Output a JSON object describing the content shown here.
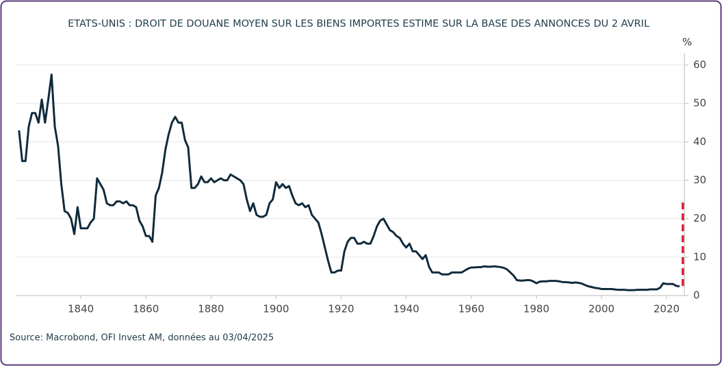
{
  "chart_data": {
    "type": "line",
    "title": "ETATS-UNIS : DROIT DE DOUANE MOYEN SUR LES BIENS IMPORTES ESTIME SUR LA BASE DES ANNONCES DU 2 AVRIL",
    "y_unit": "%",
    "source": "Source: Macrobond, OFI Invest AM, données au 03/04/2025",
    "xlim": [
      1820,
      2026
    ],
    "xticks": [
      1840,
      1860,
      1880,
      1900,
      1920,
      1940,
      1960,
      1980,
      2000,
      2020
    ],
    "ylim": [
      0,
      60
    ],
    "yticks": [
      0,
      10,
      20,
      30,
      40,
      50,
      60
    ],
    "grid": true,
    "series": [
      {
        "color": "#0f2a3a",
        "style": "solid",
        "x": [
          1821,
          1822,
          1823,
          1824,
          1825,
          1826,
          1827,
          1828,
          1829,
          1830,
          1831,
          1832,
          1833,
          1834,
          1835,
          1836,
          1837,
          1838,
          1839,
          1840,
          1841,
          1842,
          1843,
          1844,
          1845,
          1846,
          1847,
          1848,
          1849,
          1850,
          1851,
          1852,
          1853,
          1854,
          1855,
          1856,
          1857,
          1858,
          1859,
          1860,
          1861,
          1862,
          1863,
          1864,
          1865,
          1866,
          1867,
          1868,
          1869,
          1870,
          1871,
          1872,
          1873,
          1874,
          1875,
          1876,
          1877,
          1878,
          1879,
          1880,
          1881,
          1882,
          1883,
          1884,
          1885,
          1886,
          1887,
          1888,
          1889,
          1890,
          1891,
          1892,
          1893,
          1894,
          1895,
          1896,
          1897,
          1898,
          1899,
          1900,
          1901,
          1902,
          1903,
          1904,
          1905,
          1906,
          1907,
          1908,
          1909,
          1910,
          1911,
          1912,
          1913,
          1914,
          1915,
          1916,
          1917,
          1918,
          1919,
          1920,
          1921,
          1922,
          1923,
          1924,
          1925,
          1926,
          1927,
          1928,
          1929,
          1930,
          1931,
          1932,
          1933,
          1934,
          1935,
          1936,
          1937,
          1938,
          1939,
          1940,
          1941,
          1942,
          1943,
          1944,
          1945,
          1946,
          1947,
          1948,
          1949,
          1950,
          1951,
          1952,
          1953,
          1954,
          1955,
          1956,
          1957,
          1958,
          1959,
          1960,
          1961,
          1962,
          1963,
          1964,
          1965,
          1966,
          1967,
          1968,
          1969,
          1970,
          1971,
          1972,
          1973,
          1974,
          1975,
          1976,
          1977,
          1978,
          1979,
          1980,
          1981,
          1982,
          1983,
          1984,
          1985,
          1986,
          1987,
          1988,
          1989,
          1990,
          1991,
          1992,
          1993,
          1994,
          1995,
          1996,
          1997,
          1998,
          1999,
          2000,
          2001,
          2002,
          2003,
          2004,
          2005,
          2006,
          2007,
          2008,
          2009,
          2010,
          2011,
          2012,
          2013,
          2014,
          2015,
          2016,
          2017,
          2018,
          2019,
          2020,
          2021,
          2022,
          2023,
          2024
        ],
        "values": [
          43,
          35,
          35,
          44,
          47.5,
          47.5,
          45,
          51,
          45,
          51,
          57.5,
          44,
          39,
          29,
          22,
          21.5,
          20,
          16,
          23,
          17.5,
          17.5,
          17.5,
          19,
          20,
          30.5,
          29,
          27.5,
          24,
          23.5,
          23.5,
          24.5,
          24.5,
          24,
          24.5,
          23.5,
          23.5,
          23,
          19.5,
          18,
          15.5,
          15.5,
          14,
          26,
          28,
          32,
          38,
          42,
          45,
          46.5,
          45,
          45,
          40.5,
          38.5,
          28,
          28,
          29,
          31,
          29.5,
          29.5,
          30.5,
          29.5,
          30,
          30.5,
          30,
          30,
          31.5,
          31,
          30.5,
          30,
          29,
          25,
          22,
          24,
          21,
          20.5,
          20.5,
          21,
          24,
          25,
          29.5,
          28,
          29,
          28,
          28.5,
          26,
          24,
          23.5,
          24,
          23,
          23.5,
          21,
          20,
          19,
          16,
          12.5,
          9,
          6,
          6,
          6.5,
          6.5,
          11.5,
          14,
          15,
          15,
          13.5,
          13.5,
          14,
          13.5,
          13.5,
          15.5,
          18,
          19.5,
          20,
          18.5,
          17,
          16.5,
          15.5,
          15,
          13.5,
          12.5,
          13.5,
          11.5,
          11.5,
          10.5,
          9.5,
          10.5,
          7.5,
          6,
          6,
          6,
          5.5,
          5.5,
          5.5,
          6,
          6,
          6,
          6,
          6.5,
          7,
          7.3,
          7.3,
          7.4,
          7.4,
          7.6,
          7.5,
          7.5,
          7.6,
          7.5,
          7.4,
          7.2,
          6.8,
          6,
          5.2,
          4,
          3.9,
          3.9,
          4,
          4,
          3.7,
          3.2,
          3.6,
          3.7,
          3.7,
          3.8,
          3.8,
          3.8,
          3.7,
          3.5,
          3.5,
          3.4,
          3.3,
          3.4,
          3.3,
          3.1,
          2.7,
          2.4,
          2.2,
          2,
          1.9,
          1.7,
          1.7,
          1.7,
          1.7,
          1.6,
          1.5,
          1.5,
          1.5,
          1.4,
          1.4,
          1.4,
          1.5,
          1.5,
          1.5,
          1.5,
          1.6,
          1.6,
          1.6,
          2,
          3.2,
          3,
          3,
          3,
          2.5,
          2.4
        ]
      },
      {
        "color": "#e0203a",
        "style": "dashed",
        "x": [
          2025,
          2025
        ],
        "values": [
          2.5,
          25
        ]
      }
    ]
  }
}
